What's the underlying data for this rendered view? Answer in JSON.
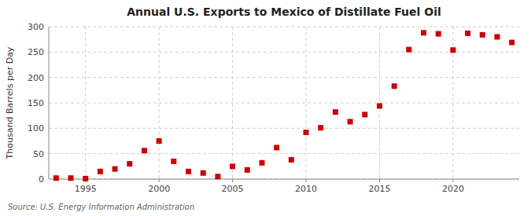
{
  "chart_data": {
    "type": "scatter",
    "title": "Annual U.S. Exports to Mexico of Distillate Fuel Oil",
    "ylabel": "Thousand Barrels per Day",
    "source": "Source: U.S. Energy Information Administration",
    "x": [
      1993,
      1994,
      1995,
      1996,
      1997,
      1998,
      1999,
      2000,
      2001,
      2002,
      2003,
      2004,
      2005,
      2006,
      2007,
      2008,
      2009,
      2010,
      2011,
      2012,
      2013,
      2014,
      2015,
      2016,
      2017,
      2018,
      2019,
      2020,
      2021,
      2022,
      2023,
      2024
    ],
    "values": [
      2,
      2,
      1,
      15,
      20,
      30,
      56,
      75,
      35,
      15,
      12,
      5,
      25,
      18,
      32,
      62,
      38,
      92,
      101,
      132,
      113,
      127,
      144,
      183,
      255,
      288,
      286,
      254,
      287,
      284,
      280,
      269
    ],
    "color": "#cc0000",
    "marker": "square",
    "xlim": [
      1992.5,
      2024.5
    ],
    "ylim": [
      0,
      300
    ],
    "xticks": [
      1995,
      2000,
      2005,
      2010,
      2015,
      2020
    ],
    "yticks": [
      0,
      50,
      100,
      150,
      200,
      250,
      300
    ],
    "grid": true
  }
}
